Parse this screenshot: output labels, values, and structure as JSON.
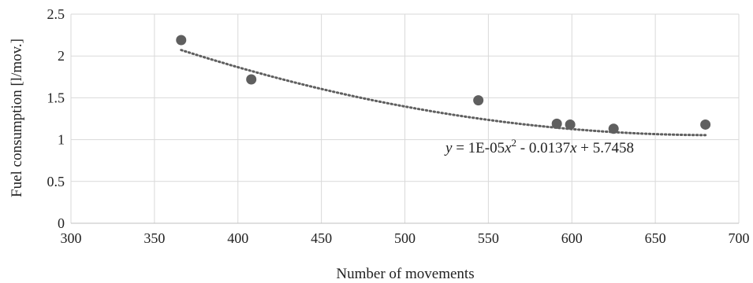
{
  "chart_data": {
    "type": "scatter",
    "title": "",
    "xlabel": "Number of movements",
    "ylabel": "Fuel consumption [l/mov.]",
    "xlim": [
      300,
      700
    ],
    "ylim": [
      0,
      2.5
    ],
    "x_ticks": [
      "300",
      "350",
      "400",
      "450",
      "500",
      "550",
      "600",
      "650",
      "700"
    ],
    "y_ticks": [
      "0",
      "0.5",
      "1",
      "1.5",
      "2",
      "2.5"
    ],
    "grid": true,
    "point_color": "#5f5f5f",
    "trendline_color": "#5f5f5f",
    "series": [
      {
        "x": [
          366,
          408,
          544,
          591,
          599,
          625,
          680
        ],
        "y": [
          2.19,
          1.72,
          1.47,
          1.19,
          1.18,
          1.13,
          1.18
        ]
      }
    ],
    "trendline": {
      "type": "polynomial",
      "order": 2,
      "coefficients": [
        1e-05,
        -0.0137,
        5.7458
      ],
      "x_range": [
        366,
        680
      ],
      "equation": {
        "y_var": "y",
        "part1": " = 1E-05",
        "x_var1": "x",
        "exp": "2",
        "part2": " - 0.0137",
        "x_var2": "x",
        "part3": " + 5.7458"
      }
    }
  }
}
